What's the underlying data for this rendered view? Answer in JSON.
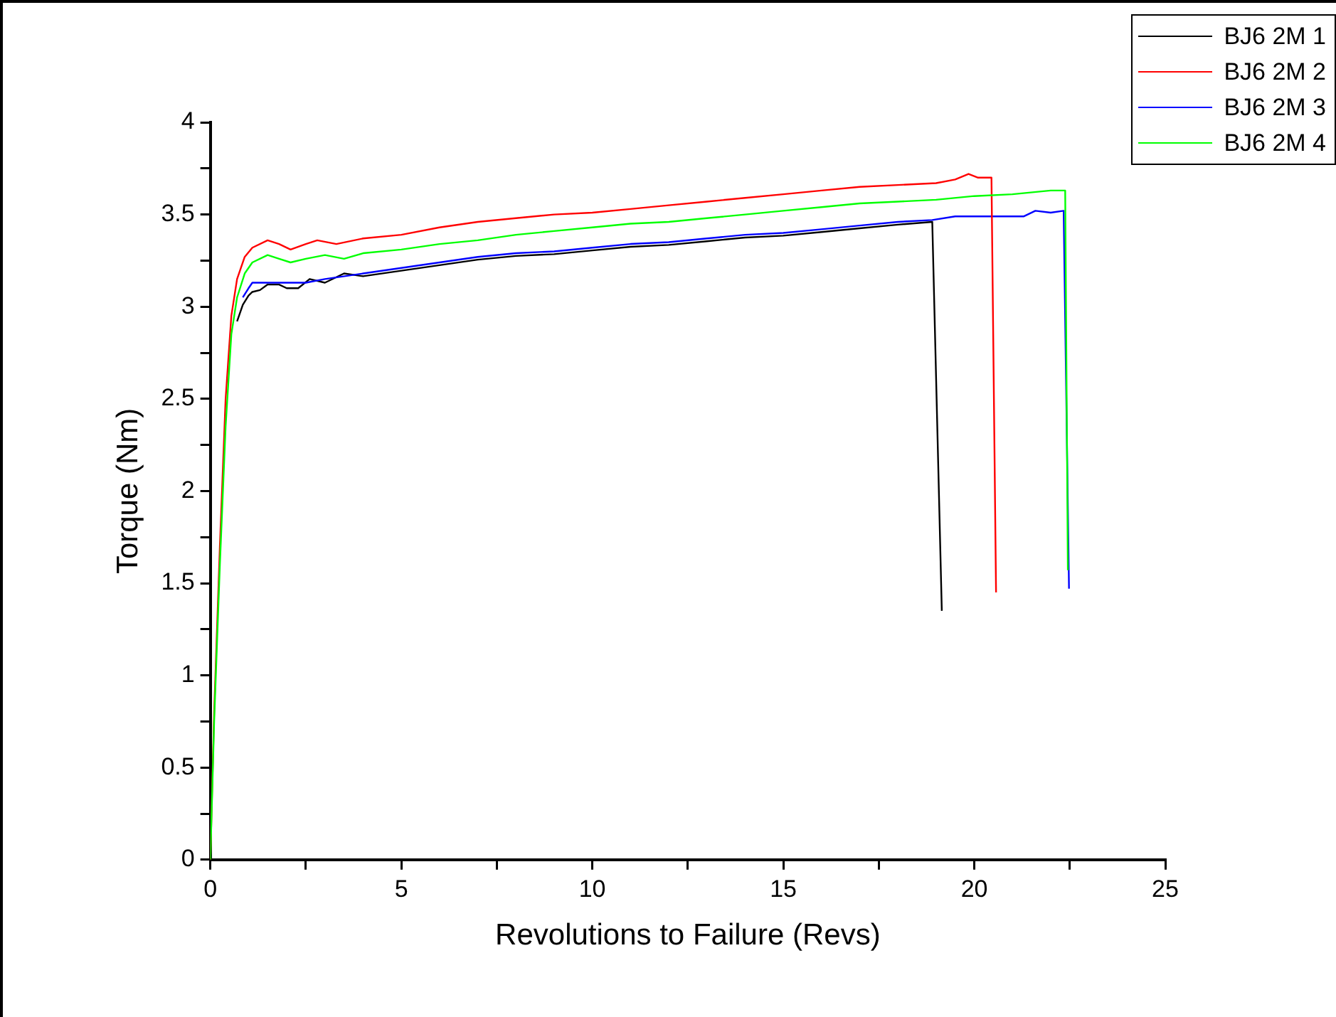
{
  "chart_data": {
    "type": "line",
    "xlabel": "Revolutions to Failure (Revs)",
    "ylabel": "Torque (Nm)",
    "xlim": [
      0,
      25
    ],
    "ylim": [
      0,
      4
    ],
    "xticks": [
      0,
      {
        "value": 2.5,
        "label": null
      },
      5,
      {
        "value": 7.5,
        "label": null
      },
      10,
      {
        "value": 12.5,
        "label": null
      },
      15,
      {
        "value": 17.5,
        "label": null
      },
      20,
      {
        "value": 22.5,
        "label": null
      },
      25
    ],
    "yticks": [
      0,
      {
        "value": 0.25,
        "label": null
      },
      0.5,
      {
        "value": 0.75,
        "label": null
      },
      1,
      {
        "value": 1.25,
        "label": null
      },
      1.5,
      {
        "value": 1.75,
        "label": null
      },
      2,
      {
        "value": 2.25,
        "label": null
      },
      2.5,
      {
        "value": 2.75,
        "label": null
      },
      3,
      {
        "value": 3.25,
        "label": null
      },
      3.5,
      {
        "value": 3.75,
        "label": null
      },
      4
    ],
    "grid": false,
    "legend": "top right",
    "marker": "none",
    "line_style": "solid",
    "series": [
      {
        "name": "BJ6 2M 1",
        "color": "#000000",
        "x": [
          0.7,
          0.85,
          1.0,
          1.1,
          1.3,
          1.5,
          1.8,
          2.0,
          2.3,
          2.6,
          3.0,
          3.5,
          4,
          5,
          6,
          7,
          8,
          9,
          10,
          11,
          12,
          13,
          14,
          15,
          16,
          17,
          18,
          18.9,
          19.15
        ],
        "values": [
          2.92,
          3.01,
          3.06,
          3.08,
          3.09,
          3.12,
          3.12,
          3.1,
          3.1,
          3.15,
          3.13,
          3.18,
          3.165,
          3.195,
          3.225,
          3.255,
          3.275,
          3.285,
          3.305,
          3.325,
          3.335,
          3.355,
          3.375,
          3.385,
          3.405,
          3.425,
          3.445,
          3.46,
          1.35
        ]
      },
      {
        "name": "BJ6 2M 2",
        "color": "#ff0000",
        "x": [
          0,
          0.1,
          0.25,
          0.4,
          0.55,
          0.7,
          0.9,
          1.1,
          1.5,
          1.8,
          2.1,
          2.5,
          2.8,
          3.3,
          4,
          5,
          6,
          7,
          8,
          9,
          10,
          11,
          12,
          13,
          14,
          15,
          16,
          17,
          18,
          19,
          19.5,
          19.85,
          20.1,
          20.45,
          20.57
        ],
        "values": [
          0,
          0.8,
          1.7,
          2.5,
          2.95,
          3.15,
          3.27,
          3.32,
          3.36,
          3.34,
          3.31,
          3.34,
          3.36,
          3.34,
          3.37,
          3.39,
          3.43,
          3.46,
          3.48,
          3.5,
          3.51,
          3.53,
          3.55,
          3.57,
          3.59,
          3.61,
          3.63,
          3.65,
          3.66,
          3.67,
          3.69,
          3.72,
          3.7,
          3.7,
          1.45
        ]
      },
      {
        "name": "BJ6 2M 3",
        "color": "#0000ff",
        "x": [
          0.85,
          1.0,
          1.1,
          1.5,
          2.0,
          2.5,
          3,
          4,
          5,
          6,
          7,
          8,
          9,
          10,
          11,
          12,
          13,
          14,
          15,
          16,
          17,
          18,
          18.9,
          19.5,
          21.3,
          21.6,
          22.0,
          22.34,
          22.48
        ],
        "values": [
          3.05,
          3.1,
          3.13,
          3.13,
          3.13,
          3.13,
          3.15,
          3.18,
          3.21,
          3.24,
          3.27,
          3.29,
          3.3,
          3.32,
          3.34,
          3.35,
          3.37,
          3.39,
          3.4,
          3.42,
          3.44,
          3.46,
          3.47,
          3.49,
          3.49,
          3.52,
          3.51,
          3.52,
          1.47
        ]
      },
      {
        "name": "BJ6 2M 4",
        "color": "#00ff00",
        "x": [
          0,
          0.1,
          0.25,
          0.4,
          0.55,
          0.7,
          0.9,
          1.1,
          1.5,
          1.8,
          2.1,
          2.5,
          3,
          3.5,
          4,
          5,
          6,
          7,
          8,
          9,
          10,
          11,
          12,
          13,
          14,
          15,
          16,
          17,
          18,
          19,
          20,
          21,
          22,
          22.38,
          22.45
        ],
        "values": [
          0,
          0.75,
          1.6,
          2.35,
          2.85,
          3.05,
          3.18,
          3.24,
          3.28,
          3.26,
          3.24,
          3.26,
          3.28,
          3.26,
          3.29,
          3.31,
          3.34,
          3.36,
          3.39,
          3.41,
          3.43,
          3.45,
          3.46,
          3.48,
          3.5,
          3.52,
          3.54,
          3.56,
          3.57,
          3.58,
          3.6,
          3.61,
          3.63,
          3.63,
          1.57
        ]
      }
    ]
  }
}
